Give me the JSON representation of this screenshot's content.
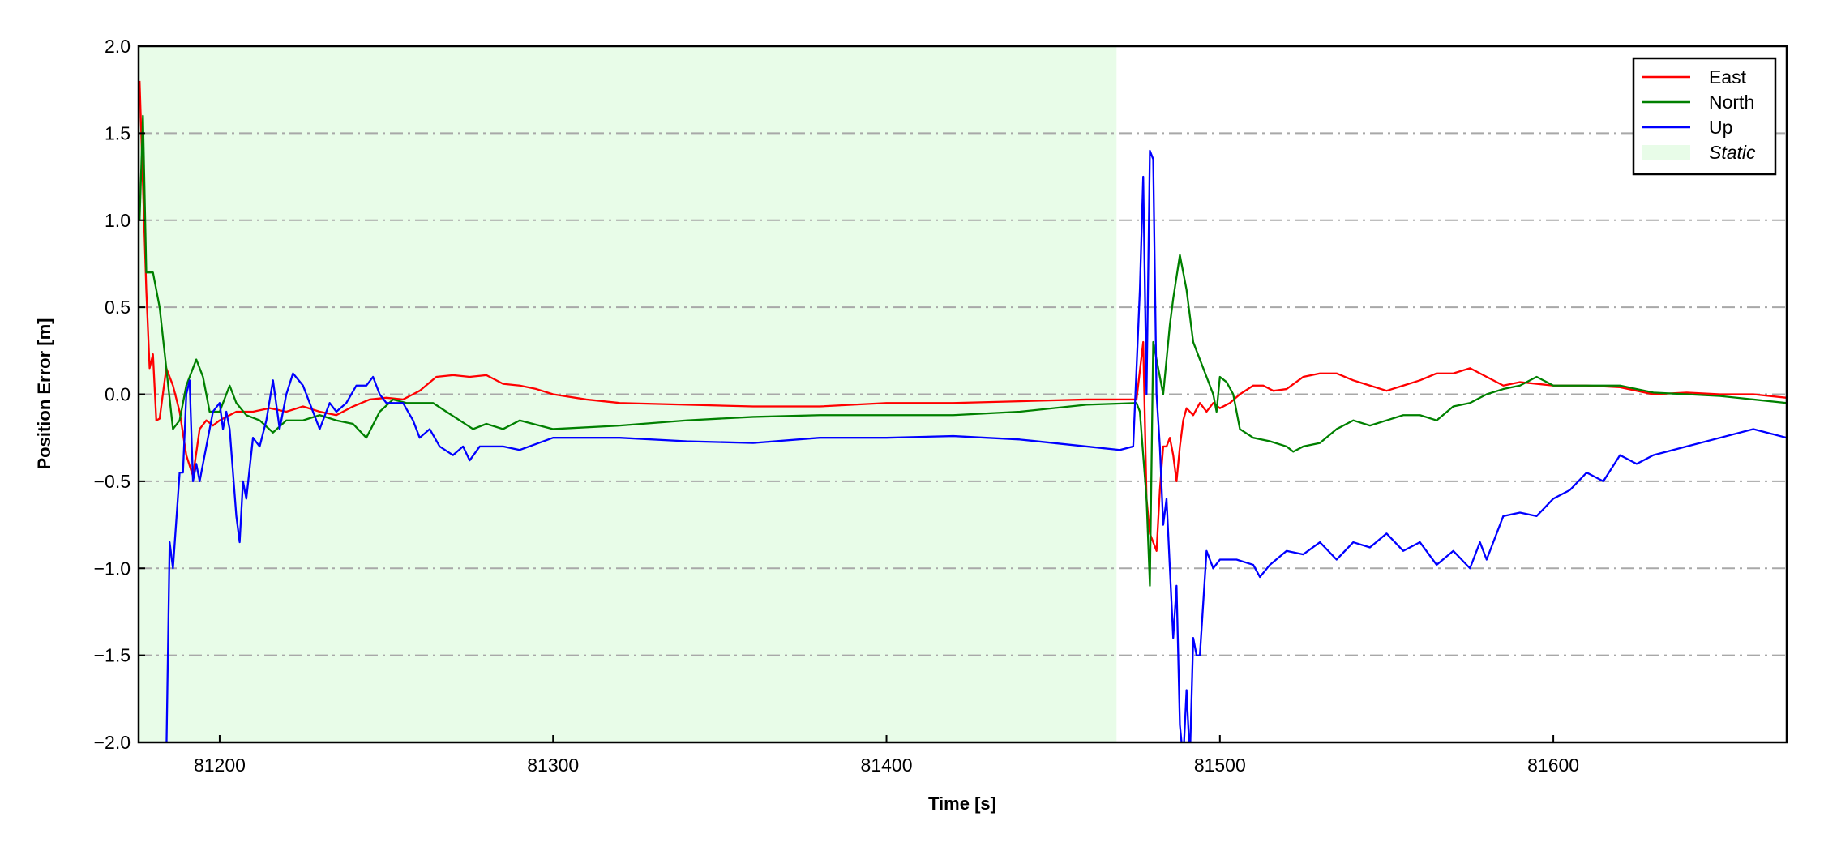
{
  "chart_data": {
    "type": "line",
    "title": "",
    "xlabel": "Time [s]",
    "ylabel": "Position Error [m]",
    "xlim": [
      81175.7,
      81670
    ],
    "ylim": [
      -2.0,
      2.0
    ],
    "xticks": [
      81200,
      81300,
      81400,
      81500,
      81600
    ],
    "xtick_labels": [
      "81200",
      "81300",
      "81400",
      "81500",
      "81600"
    ],
    "yticks": [
      -2.0,
      -1.5,
      -1.0,
      -0.5,
      0.0,
      0.5,
      1.0,
      1.5,
      2.0
    ],
    "ytick_labels": [
      "−2.0",
      "−1.5",
      "−1.0",
      "−0.5",
      "0.0",
      "0.5",
      "1.0",
      "1.5",
      "2.0"
    ],
    "grid": "horizontal dash-dot",
    "legend_position": "top-right",
    "shaded_region": {
      "name": "Static",
      "x": [
        81175.7,
        81469
      ],
      "color": "#e8fce8"
    },
    "series": [
      {
        "name": "East",
        "color": "#ff0000",
        "points": [
          [
            81176,
            1.8
          ],
          [
            81177,
            1.2
          ],
          [
            81178,
            0.6
          ],
          [
            81179,
            0.15
          ],
          [
            81180,
            0.23
          ],
          [
            81181,
            -0.15
          ],
          [
            81182,
            -0.14
          ],
          [
            81184,
            0.15
          ],
          [
            81186,
            0.05
          ],
          [
            81188,
            -0.1
          ],
          [
            81190,
            -0.35
          ],
          [
            81192,
            -0.47
          ],
          [
            81194,
            -0.2
          ],
          [
            81196,
            -0.15
          ],
          [
            81198,
            -0.18
          ],
          [
            81200,
            -0.15
          ],
          [
            81205,
            -0.1
          ],
          [
            81210,
            -0.1
          ],
          [
            81215,
            -0.08
          ],
          [
            81220,
            -0.1
          ],
          [
            81225,
            -0.07
          ],
          [
            81230,
            -0.1
          ],
          [
            81235,
            -0.12
          ],
          [
            81240,
            -0.07
          ],
          [
            81245,
            -0.03
          ],
          [
            81250,
            -0.02
          ],
          [
            81255,
            -0.03
          ],
          [
            81260,
            0.02
          ],
          [
            81265,
            0.1
          ],
          [
            81270,
            0.11
          ],
          [
            81275,
            0.1
          ],
          [
            81280,
            0.11
          ],
          [
            81285,
            0.06
          ],
          [
            81290,
            0.05
          ],
          [
            81295,
            0.03
          ],
          [
            81300,
            0.0
          ],
          [
            81310,
            -0.03
          ],
          [
            81320,
            -0.05
          ],
          [
            81340,
            -0.06
          ],
          [
            81360,
            -0.07
          ],
          [
            81380,
            -0.07
          ],
          [
            81400,
            -0.05
          ],
          [
            81420,
            -0.05
          ],
          [
            81440,
            -0.04
          ],
          [
            81460,
            -0.03
          ],
          [
            81475,
            -0.03
          ],
          [
            81477,
            0.3
          ],
          [
            81478,
            -0.6
          ],
          [
            81479,
            -0.8
          ],
          [
            81480,
            -0.85
          ],
          [
            81481,
            -0.9
          ],
          [
            81482,
            -0.55
          ],
          [
            81483,
            -0.3
          ],
          [
            81484,
            -0.3
          ],
          [
            81485,
            -0.25
          ],
          [
            81486,
            -0.35
          ],
          [
            81487,
            -0.5
          ],
          [
            81488,
            -0.3
          ],
          [
            81489,
            -0.15
          ],
          [
            81490,
            -0.08
          ],
          [
            81492,
            -0.12
          ],
          [
            81494,
            -0.05
          ],
          [
            81496,
            -0.1
          ],
          [
            81498,
            -0.05
          ],
          [
            81500,
            -0.08
          ],
          [
            81503,
            -0.05
          ],
          [
            81506,
            0.0
          ],
          [
            81510,
            0.05
          ],
          [
            81513,
            0.05
          ],
          [
            81516,
            0.02
          ],
          [
            81520,
            0.03
          ],
          [
            81525,
            0.1
          ],
          [
            81530,
            0.12
          ],
          [
            81535,
            0.12
          ],
          [
            81540,
            0.08
          ],
          [
            81545,
            0.05
          ],
          [
            81550,
            0.02
          ],
          [
            81555,
            0.05
          ],
          [
            81560,
            0.08
          ],
          [
            81565,
            0.12
          ],
          [
            81570,
            0.12
          ],
          [
            81575,
            0.15
          ],
          [
            81580,
            0.1
          ],
          [
            81585,
            0.05
          ],
          [
            81590,
            0.07
          ],
          [
            81600,
            0.05
          ],
          [
            81610,
            0.05
          ],
          [
            81620,
            0.04
          ],
          [
            81630,
            0.0
          ],
          [
            81640,
            0.01
          ],
          [
            81650,
            0.0
          ],
          [
            81660,
            0.0
          ],
          [
            81670,
            -0.02
          ]
        ]
      },
      {
        "name": "North",
        "color": "#008000",
        "points": [
          [
            81176,
            1.0
          ],
          [
            81177,
            1.6
          ],
          [
            81178,
            0.7
          ],
          [
            81180,
            0.7
          ],
          [
            81182,
            0.5
          ],
          [
            81184,
            0.15
          ],
          [
            81186,
            -0.2
          ],
          [
            81188,
            -0.15
          ],
          [
            81190,
            0.05
          ],
          [
            81192,
            0.15
          ],
          [
            81193,
            0.2
          ],
          [
            81195,
            0.1
          ],
          [
            81197,
            -0.1
          ],
          [
            81200,
            -0.1
          ],
          [
            81203,
            0.05
          ],
          [
            81205,
            -0.05
          ],
          [
            81208,
            -0.12
          ],
          [
            81212,
            -0.15
          ],
          [
            81216,
            -0.22
          ],
          [
            81220,
            -0.15
          ],
          [
            81225,
            -0.15
          ],
          [
            81230,
            -0.12
          ],
          [
            81235,
            -0.15
          ],
          [
            81240,
            -0.17
          ],
          [
            81244,
            -0.25
          ],
          [
            81248,
            -0.1
          ],
          [
            81252,
            -0.03
          ],
          [
            81256,
            -0.05
          ],
          [
            81260,
            -0.05
          ],
          [
            81264,
            -0.05
          ],
          [
            81268,
            -0.1
          ],
          [
            81272,
            -0.15
          ],
          [
            81276,
            -0.2
          ],
          [
            81280,
            -0.17
          ],
          [
            81285,
            -0.2
          ],
          [
            81290,
            -0.15
          ],
          [
            81300,
            -0.2
          ],
          [
            81320,
            -0.18
          ],
          [
            81340,
            -0.15
          ],
          [
            81360,
            -0.13
          ],
          [
            81380,
            -0.12
          ],
          [
            81400,
            -0.12
          ],
          [
            81420,
            -0.12
          ],
          [
            81440,
            -0.1
          ],
          [
            81460,
            -0.06
          ],
          [
            81475,
            -0.05
          ],
          [
            81476,
            -0.1
          ],
          [
            81478,
            -0.6
          ],
          [
            81479,
            -1.1
          ],
          [
            81480,
            0.3
          ],
          [
            81481,
            0.2
          ],
          [
            81483,
            0.0
          ],
          [
            81485,
            0.4
          ],
          [
            81486,
            0.55
          ],
          [
            81488,
            0.8
          ],
          [
            81490,
            0.6
          ],
          [
            81492,
            0.3
          ],
          [
            81494,
            0.2
          ],
          [
            81496,
            0.1
          ],
          [
            81498,
            0.0
          ],
          [
            81499,
            -0.1
          ],
          [
            81500,
            0.1
          ],
          [
            81502,
            0.07
          ],
          [
            81504,
            0.0
          ],
          [
            81506,
            -0.2
          ],
          [
            81510,
            -0.25
          ],
          [
            81515,
            -0.27
          ],
          [
            81520,
            -0.3
          ],
          [
            81522,
            -0.33
          ],
          [
            81525,
            -0.3
          ],
          [
            81530,
            -0.28
          ],
          [
            81535,
            -0.2
          ],
          [
            81540,
            -0.15
          ],
          [
            81545,
            -0.18
          ],
          [
            81550,
            -0.15
          ],
          [
            81555,
            -0.12
          ],
          [
            81560,
            -0.12
          ],
          [
            81565,
            -0.15
          ],
          [
            81570,
            -0.07
          ],
          [
            81575,
            -0.05
          ],
          [
            81580,
            0.0
          ],
          [
            81585,
            0.03
          ],
          [
            81590,
            0.05
          ],
          [
            81595,
            0.1
          ],
          [
            81600,
            0.05
          ],
          [
            81610,
            0.05
          ],
          [
            81620,
            0.05
          ],
          [
            81630,
            0.01
          ],
          [
            81640,
            0.0
          ],
          [
            81650,
            -0.01
          ],
          [
            81660,
            -0.03
          ],
          [
            81670,
            -0.05
          ]
        ]
      },
      {
        "name": "Up",
        "color": "#0000ff",
        "points": [
          [
            81184,
            -2.1
          ],
          [
            81185,
            -0.85
          ],
          [
            81186,
            -1.0
          ],
          [
            81188,
            -0.45
          ],
          [
            81189,
            -0.45
          ],
          [
            81190,
            0.0
          ],
          [
            81191,
            0.08
          ],
          [
            81192,
            -0.5
          ],
          [
            81193,
            -0.4
          ],
          [
            81194,
            -0.5
          ],
          [
            81196,
            -0.3
          ],
          [
            81198,
            -0.1
          ],
          [
            81200,
            -0.05
          ],
          [
            81201,
            -0.2
          ],
          [
            81202,
            -0.1
          ],
          [
            81203,
            -0.2
          ],
          [
            81205,
            -0.7
          ],
          [
            81206,
            -0.85
          ],
          [
            81207,
            -0.5
          ],
          [
            81208,
            -0.6
          ],
          [
            81210,
            -0.25
          ],
          [
            81212,
            -0.3
          ],
          [
            81214,
            -0.15
          ],
          [
            81216,
            0.08
          ],
          [
            81218,
            -0.2
          ],
          [
            81220,
            0.0
          ],
          [
            81222,
            0.12
          ],
          [
            81225,
            0.05
          ],
          [
            81228,
            -0.1
          ],
          [
            81230,
            -0.2
          ],
          [
            81233,
            -0.05
          ],
          [
            81235,
            -0.1
          ],
          [
            81238,
            -0.05
          ],
          [
            81241,
            0.05
          ],
          [
            81244,
            0.05
          ],
          [
            81246,
            0.1
          ],
          [
            81248,
            0.0
          ],
          [
            81250,
            -0.05
          ],
          [
            81255,
            -0.05
          ],
          [
            81258,
            -0.15
          ],
          [
            81260,
            -0.25
          ],
          [
            81263,
            -0.2
          ],
          [
            81266,
            -0.3
          ],
          [
            81270,
            -0.35
          ],
          [
            81273,
            -0.3
          ],
          [
            81275,
            -0.38
          ],
          [
            81278,
            -0.3
          ],
          [
            81285,
            -0.3
          ],
          [
            81290,
            -0.32
          ],
          [
            81300,
            -0.25
          ],
          [
            81320,
            -0.25
          ],
          [
            81340,
            -0.27
          ],
          [
            81360,
            -0.28
          ],
          [
            81380,
            -0.25
          ],
          [
            81400,
            -0.25
          ],
          [
            81420,
            -0.24
          ],
          [
            81440,
            -0.26
          ],
          [
            81460,
            -0.3
          ],
          [
            81470,
            -0.32
          ],
          [
            81474,
            -0.3
          ],
          [
            81476,
            0.6
          ],
          [
            81477,
            1.25
          ],
          [
            81478,
            0.0
          ],
          [
            81479,
            1.4
          ],
          [
            81480,
            1.35
          ],
          [
            81481,
            0.0
          ],
          [
            81482,
            -0.3
          ],
          [
            81483,
            -0.75
          ],
          [
            81484,
            -0.6
          ],
          [
            81485,
            -1.0
          ],
          [
            81486,
            -1.4
          ],
          [
            81487,
            -1.1
          ],
          [
            81488,
            -1.9
          ],
          [
            81489,
            -2.1
          ],
          [
            81490,
            -1.7
          ],
          [
            81491,
            -2.1
          ],
          [
            81492,
            -1.4
          ],
          [
            81493,
            -1.5
          ],
          [
            81494,
            -1.5
          ],
          [
            81495,
            -1.2
          ],
          [
            81496,
            -0.9
          ],
          [
            81498,
            -1.0
          ],
          [
            81500,
            -0.95
          ],
          [
            81505,
            -0.95
          ],
          [
            81510,
            -0.98
          ],
          [
            81512,
            -1.05
          ],
          [
            81515,
            -0.98
          ],
          [
            81520,
            -0.9
          ],
          [
            81525,
            -0.92
          ],
          [
            81530,
            -0.85
          ],
          [
            81535,
            -0.95
          ],
          [
            81540,
            -0.85
          ],
          [
            81545,
            -0.88
          ],
          [
            81550,
            -0.8
          ],
          [
            81555,
            -0.9
          ],
          [
            81560,
            -0.85
          ],
          [
            81565,
            -0.98
          ],
          [
            81570,
            -0.9
          ],
          [
            81575,
            -1.0
          ],
          [
            81578,
            -0.85
          ],
          [
            81580,
            -0.95
          ],
          [
            81585,
            -0.7
          ],
          [
            81590,
            -0.68
          ],
          [
            81595,
            -0.7
          ],
          [
            81600,
            -0.6
          ],
          [
            81605,
            -0.55
          ],
          [
            81610,
            -0.45
          ],
          [
            81615,
            -0.5
          ],
          [
            81620,
            -0.35
          ],
          [
            81625,
            -0.4
          ],
          [
            81630,
            -0.35
          ],
          [
            81640,
            -0.3
          ],
          [
            81650,
            -0.25
          ],
          [
            81660,
            -0.2
          ],
          [
            81670,
            -0.25
          ]
        ]
      }
    ]
  }
}
